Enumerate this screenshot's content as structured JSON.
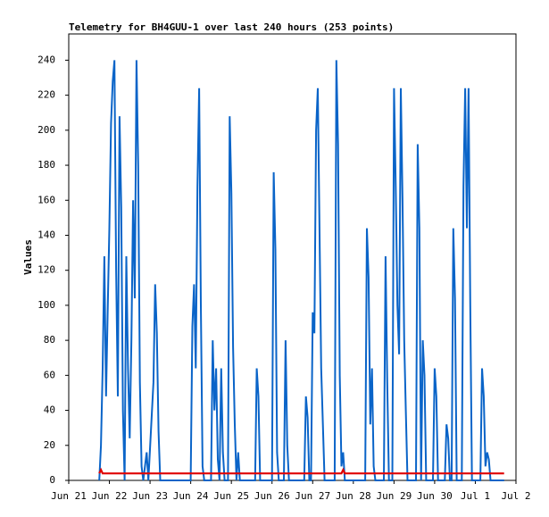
{
  "chart_data": {
    "type": "line",
    "title": "Telemetry for BH4GUU-1 over last 240 hours (253 points)",
    "y_label": "Values",
    "x": [
      18,
      19,
      20,
      21,
      22,
      23,
      24,
      25,
      26,
      27,
      28,
      29,
      30,
      31,
      32,
      33,
      34,
      35,
      36,
      37,
      38,
      39,
      40,
      41,
      42,
      43,
      44,
      46,
      47,
      50,
      51,
      52,
      53,
      54,
      72,
      73,
      74,
      75,
      76,
      77,
      78,
      79,
      80,
      84,
      85,
      86,
      87,
      88,
      89,
      90,
      91,
      92,
      94,
      95,
      96,
      97,
      98,
      99,
      100,
      101,
      110,
      111,
      112,
      113,
      120,
      121,
      122,
      123,
      124,
      127,
      128,
      129,
      130,
      139,
      140,
      141,
      142,
      143,
      144,
      145,
      146,
      147,
      148,
      149,
      150,
      151,
      157,
      158,
      159,
      160,
      161,
      162,
      163,
      175,
      176,
      177,
      178,
      179,
      180,
      181,
      186,
      187,
      188,
      189,
      191,
      192,
      193,
      194,
      195,
      196,
      197,
      198,
      199,
      200,
      205,
      206,
      207,
      208,
      209,
      210,
      211,
      215,
      216,
      217,
      218,
      222,
      223,
      224,
      225,
      226,
      227,
      228,
      229,
      232,
      233,
      234,
      235,
      236,
      237,
      238,
      243,
      244,
      245,
      246,
      247,
      248,
      249,
      257
    ],
    "series": [
      {
        "name": "Blue",
        "color": "#0a64c8",
        "values": [
          0,
          20,
          64,
          128,
          48,
          96,
          144,
          204,
          228,
          240,
          120,
          48,
          208,
          156,
          40,
          0,
          128,
          64,
          24,
          80,
          160,
          104,
          240,
          180,
          56,
          8,
          0,
          16,
          0,
          56,
          112,
          84,
          28,
          0,
          0,
          88,
          112,
          64,
          168,
          224,
          100,
          8,
          0,
          0,
          80,
          40,
          64,
          12,
          0,
          64,
          16,
          0,
          0,
          208,
          164,
          76,
          32,
          0,
          16,
          0,
          0,
          64,
          48,
          0,
          0,
          176,
          132,
          16,
          0,
          0,
          80,
          20,
          0,
          0,
          48,
          36,
          0,
          0,
          96,
          84,
          200,
          224,
          144,
          64,
          32,
          0,
          0,
          240,
          192,
          60,
          8,
          16,
          0,
          0,
          144,
          116,
          32,
          64,
          8,
          0,
          0,
          128,
          56,
          0,
          0,
          224,
          168,
          100,
          72,
          224,
          160,
          80,
          40,
          0,
          0,
          192,
          144,
          0,
          80,
          60,
          0,
          0,
          64,
          48,
          0,
          0,
          32,
          24,
          0,
          0,
          144,
          104,
          0,
          0,
          168,
          224,
          144,
          224,
          100,
          0,
          0,
          64,
          48,
          8,
          16,
          12,
          0,
          0
        ]
      },
      {
        "name": "Red",
        "color": "#e00000",
        "values": [
          4,
          6,
          4,
          4,
          4,
          4,
          4,
          4,
          4,
          4,
          4,
          4,
          4,
          4,
          4,
          4,
          4,
          4,
          4,
          4,
          4,
          4,
          4,
          4,
          4,
          4,
          4,
          4,
          4,
          4,
          4,
          4,
          4,
          4,
          4,
          4,
          4,
          4,
          4,
          4,
          4,
          4,
          4,
          4,
          4,
          4,
          4,
          4,
          4,
          4,
          4,
          4,
          4,
          4,
          4,
          4,
          4,
          4,
          4,
          4,
          4,
          4,
          4,
          4,
          4,
          4,
          4,
          4,
          4,
          4,
          4,
          4,
          4,
          4,
          4,
          4,
          4,
          4,
          4,
          4,
          4,
          4,
          4,
          4,
          4,
          4,
          4,
          4,
          4,
          4,
          4,
          6,
          4,
          4,
          4,
          4,
          4,
          4,
          4,
          4,
          4,
          4,
          4,
          4,
          4,
          4,
          4,
          4,
          4,
          4,
          4,
          4,
          4,
          4,
          4,
          4,
          4,
          4,
          4,
          4,
          4,
          4,
          4,
          4,
          4,
          4,
          4,
          4,
          4,
          4,
          4,
          4,
          4,
          4,
          4,
          4,
          4,
          4,
          4,
          4,
          4,
          4,
          4,
          4,
          4,
          4,
          4,
          4
        ]
      }
    ],
    "xlim": [
      0,
      264
    ],
    "xticks": [
      {
        "value": 0,
        "label": "Jun 21"
      },
      {
        "value": 24,
        "label": "Jun 22"
      },
      {
        "value": 48,
        "label": "Jun 23"
      },
      {
        "value": 72,
        "label": "Jun 24"
      },
      {
        "value": 96,
        "label": "Jun 25"
      },
      {
        "value": 120,
        "label": "Jun 26"
      },
      {
        "value": 144,
        "label": "Jun 27"
      },
      {
        "value": 168,
        "label": "Jun 28"
      },
      {
        "value": 192,
        "label": "Jun 29"
      },
      {
        "value": 216,
        "label": "Jun 30"
      },
      {
        "value": 240,
        "label": "Jul 1"
      },
      {
        "value": 264,
        "label": "Jul 2"
      }
    ],
    "ylim": [
      0,
      255
    ],
    "yticks": [
      0,
      20,
      40,
      60,
      80,
      100,
      120,
      140,
      160,
      180,
      200,
      220,
      240
    ]
  }
}
